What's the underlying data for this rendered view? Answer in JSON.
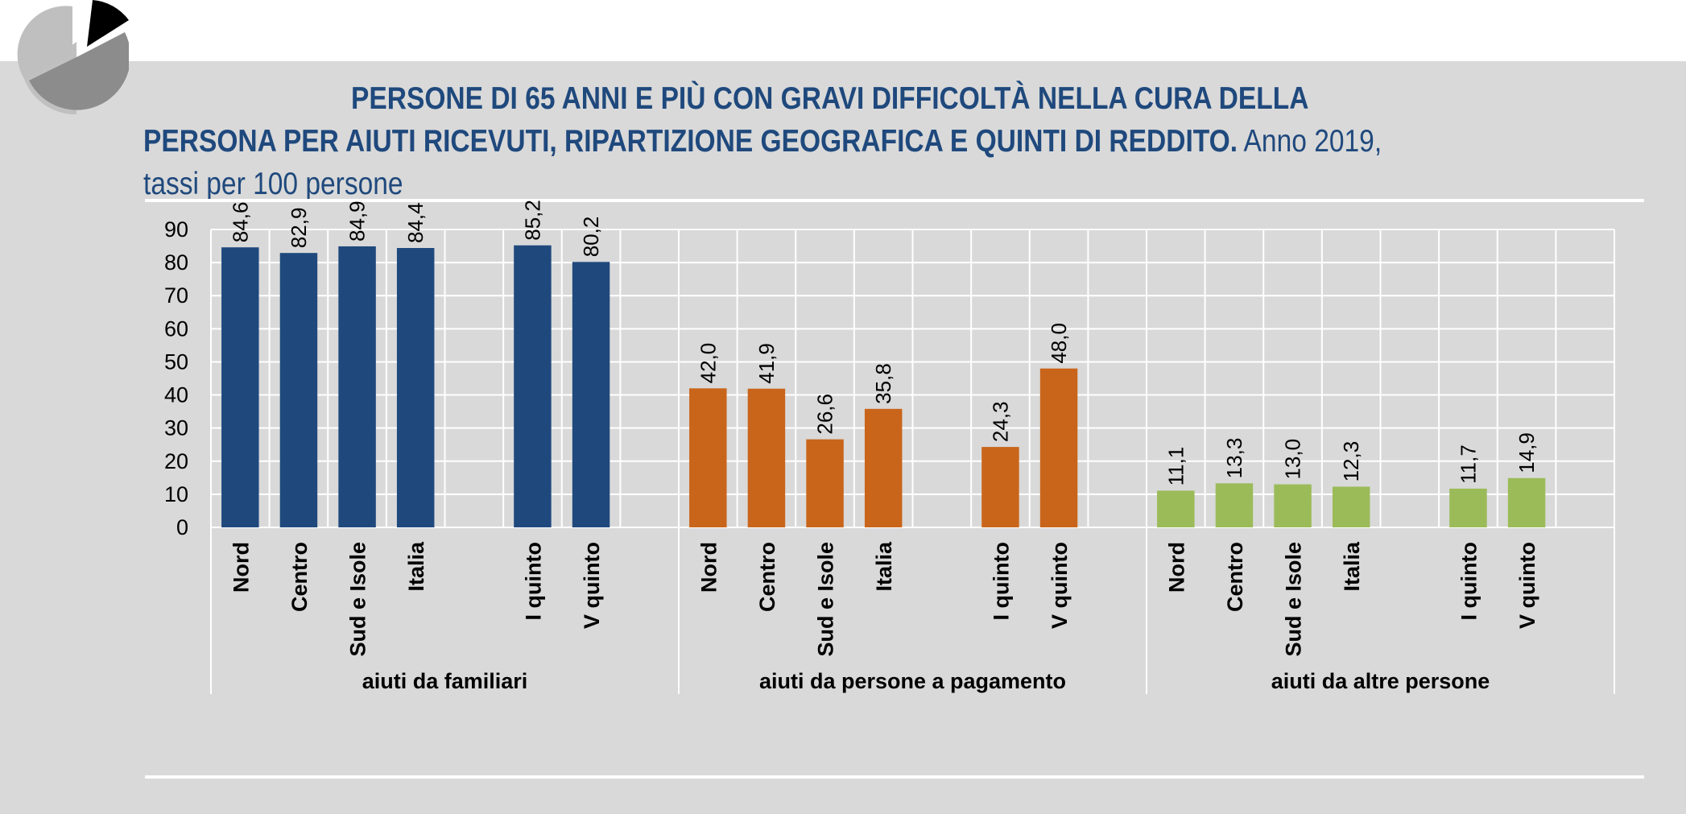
{
  "title": {
    "bold": "PERSONE DI 65 ANNI E PIÙ CON GRAVI DIFFICOLTÀ NELLA CURA DELLA PERSONA PER AIUTI RICEVUTI, RIPARTIZIONE GEOGRAFICA E QUINTI DI REDDITO.",
    "normal": " Anno 2019, tassi per 100 persone"
  },
  "logo_icon": "pie-chart-icon",
  "colors": {
    "familiari": "#1f497d",
    "pagamento": "#c9651b",
    "altre": "#9bbb59",
    "background": "#d9d9d9",
    "grid": "#ffffff"
  },
  "chart_data": {
    "type": "bar",
    "ylim": [
      0,
      90
    ],
    "yticks": [
      0,
      10,
      20,
      30,
      40,
      50,
      60,
      70,
      80,
      90
    ],
    "grid": true,
    "groups": [
      {
        "name": "aiuti da familiari",
        "color": "#1f497d",
        "categories": [
          "Nord",
          "Centro",
          "Sud e Isole",
          "Italia",
          "",
          "I quinto",
          "V quinto"
        ],
        "values": [
          84.6,
          82.9,
          84.9,
          84.4,
          null,
          85.2,
          80.2
        ],
        "labels": [
          "84,6",
          "82,9",
          "84,9",
          "84,4",
          "",
          "85,2",
          "80,2"
        ]
      },
      {
        "name": "aiuti da persone a pagamento",
        "color": "#c9651b",
        "categories": [
          "Nord",
          "Centro",
          "Sud e Isole",
          "Italia",
          "",
          "I quinto",
          "V quinto"
        ],
        "values": [
          42.0,
          41.9,
          26.6,
          35.8,
          null,
          24.3,
          48.0
        ],
        "labels": [
          "42,0",
          "41,9",
          "26,6",
          "35,8",
          "",
          "24,3",
          "48,0"
        ]
      },
      {
        "name": "aiuti da altre persone",
        "color": "#9bbb59",
        "categories": [
          "Nord",
          "Centro",
          "Sud e Isole",
          "Italia",
          "",
          "I quinto",
          "V quinto"
        ],
        "values": [
          11.1,
          13.3,
          13.0,
          12.3,
          null,
          11.7,
          14.9
        ],
        "labels": [
          "11,1",
          "13,3",
          "13,0",
          "12,3",
          "",
          "11,7",
          "14,9"
        ]
      }
    ]
  }
}
